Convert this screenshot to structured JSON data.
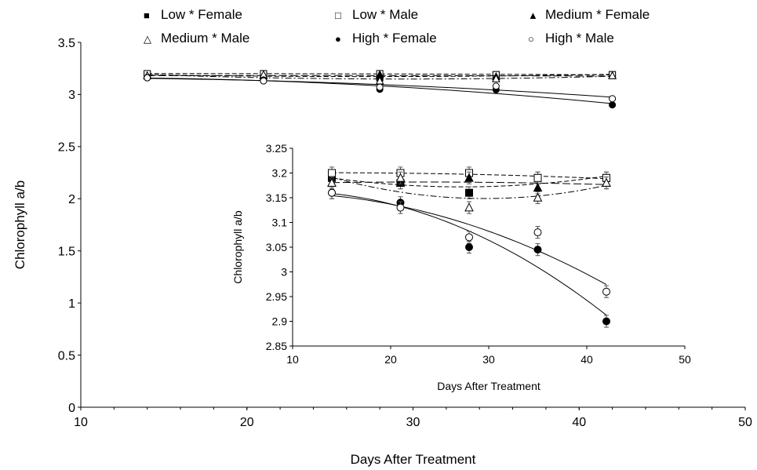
{
  "chart_data": [
    {
      "type": "scatter",
      "title": "",
      "xlabel": "Days After Treatment",
      "ylabel": "Chlorophyll a/b",
      "xlim": [
        10,
        50
      ],
      "ylim": [
        0,
        3.5
      ],
      "xticks": [
        "10",
        "20",
        "30",
        "40",
        "50"
      ],
      "yticks": [
        "0",
        "0.5",
        "1",
        "1.5",
        "2",
        "2.5",
        "3",
        "3.5"
      ],
      "x": [
        14,
        21,
        28,
        35,
        42
      ],
      "legend_position": "top",
      "grid": false,
      "series": [
        {
          "name": "Low * Female",
          "marker": "filled-square",
          "line": "dashed",
          "values": [
            3.19,
            3.18,
            3.16,
            3.19,
            3.19
          ]
        },
        {
          "name": "Low * Male",
          "marker": "open-square",
          "line": "dashed",
          "values": [
            3.2,
            3.2,
            3.2,
            3.19,
            3.19
          ]
        },
        {
          "name": "Medium * Female",
          "marker": "filled-triangle",
          "line": "long-dash",
          "values": [
            3.18,
            3.18,
            3.19,
            3.17,
            3.18
          ]
        },
        {
          "name": "Medium * Male",
          "marker": "open-triangle",
          "line": "dash-dot",
          "values": [
            3.18,
            3.19,
            3.13,
            3.15,
            3.18
          ]
        },
        {
          "name": "High * Female",
          "marker": "filled-circle",
          "line": "solid",
          "values": [
            3.16,
            3.14,
            3.05,
            3.045,
            2.9
          ]
        },
        {
          "name": "High * Male",
          "marker": "open-circle",
          "line": "solid",
          "values": [
            3.16,
            3.13,
            3.07,
            3.08,
            2.96
          ]
        }
      ]
    },
    {
      "type": "scatter",
      "title": "",
      "xlabel": "Days After Treatment",
      "ylabel": "Chlorophyll a/b",
      "xlim": [
        10,
        50
      ],
      "ylim": [
        2.85,
        3.25
      ],
      "xticks": [
        "10",
        "20",
        "30",
        "40",
        "50"
      ],
      "yticks": [
        "2.85",
        "2.9",
        "2.95",
        "3",
        "3.05",
        "3.1",
        "3.15",
        "3.2",
        "3.25"
      ],
      "x": [
        14,
        21,
        28,
        35,
        42
      ],
      "error_bar": 0.012,
      "grid": false,
      "series": [
        {
          "name": "Low * Female",
          "marker": "filled-square",
          "line": "dashed",
          "values": [
            3.19,
            3.18,
            3.16,
            3.19,
            3.19
          ]
        },
        {
          "name": "Low * Male",
          "marker": "open-square",
          "line": "dashed",
          "values": [
            3.2,
            3.2,
            3.2,
            3.19,
            3.19
          ]
        },
        {
          "name": "Medium * Female",
          "marker": "filled-triangle",
          "line": "long-dash",
          "values": [
            3.18,
            3.18,
            3.19,
            3.17,
            3.18
          ]
        },
        {
          "name": "Medium * Male",
          "marker": "open-triangle",
          "line": "dash-dot",
          "values": [
            3.18,
            3.19,
            3.13,
            3.15,
            3.18
          ]
        },
        {
          "name": "High * Female",
          "marker": "filled-circle",
          "line": "solid",
          "values": [
            3.16,
            3.14,
            3.05,
            3.045,
            2.9
          ]
        },
        {
          "name": "High * Male",
          "marker": "open-circle",
          "line": "solid",
          "values": [
            3.16,
            3.13,
            3.07,
            3.08,
            2.96
          ]
        }
      ]
    }
  ]
}
